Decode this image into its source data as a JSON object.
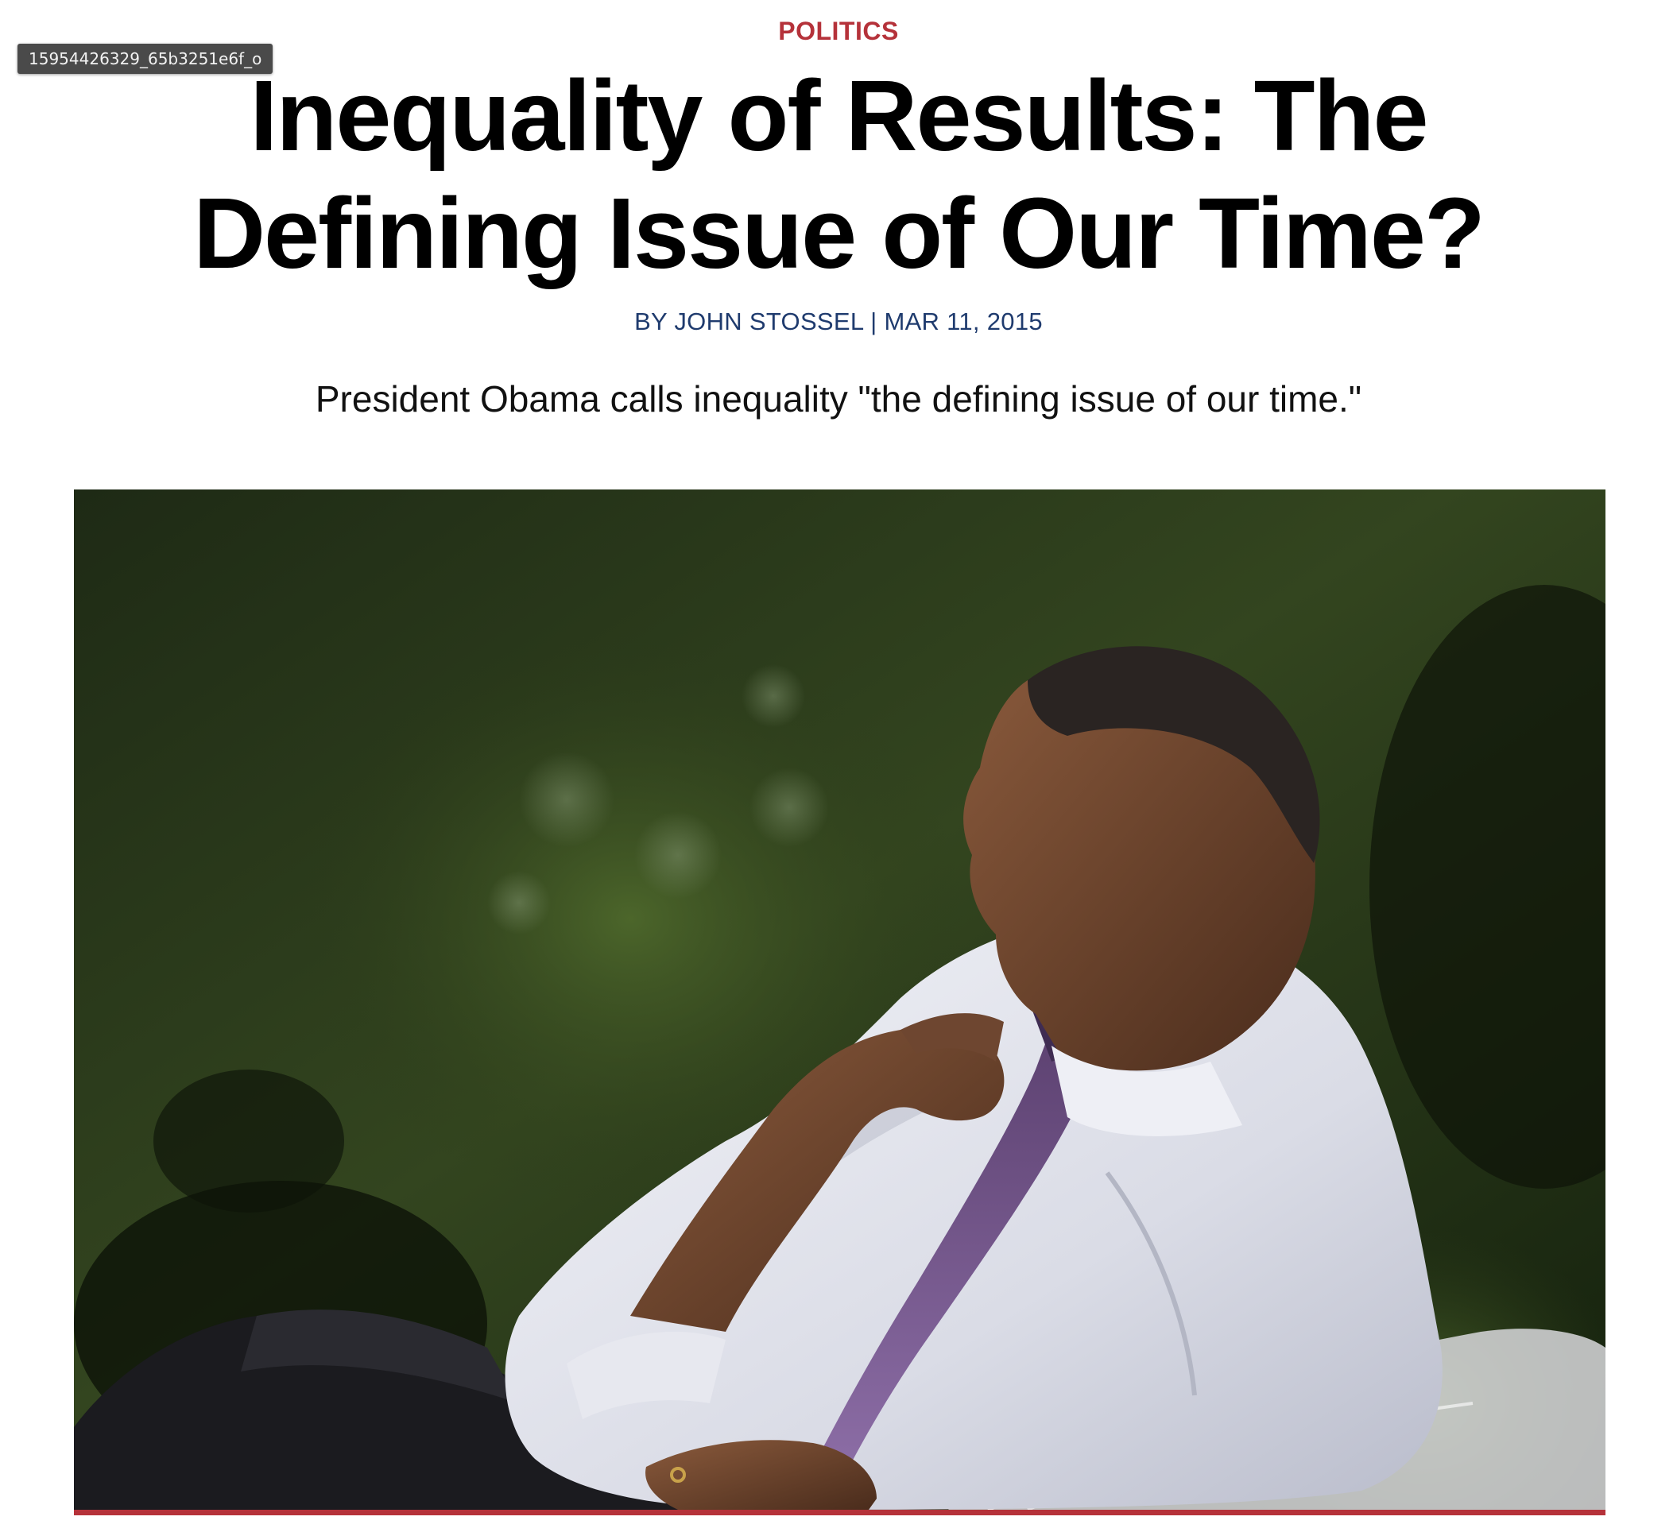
{
  "tooltip": {
    "text": "15954426329_65b3251e6f_o"
  },
  "article": {
    "category": "POLITICS",
    "title": "Inequality of Results: The Defining Issue of Our Time?",
    "byline": "BY JOHN STOSSEL | MAR 11, 2015",
    "subtitle": "President Obama calls inequality \"the defining issue of our time.\""
  },
  "colors": {
    "category": "#b5323a",
    "byline": "#1f3b6e",
    "accent_bar": "#b5323a"
  }
}
